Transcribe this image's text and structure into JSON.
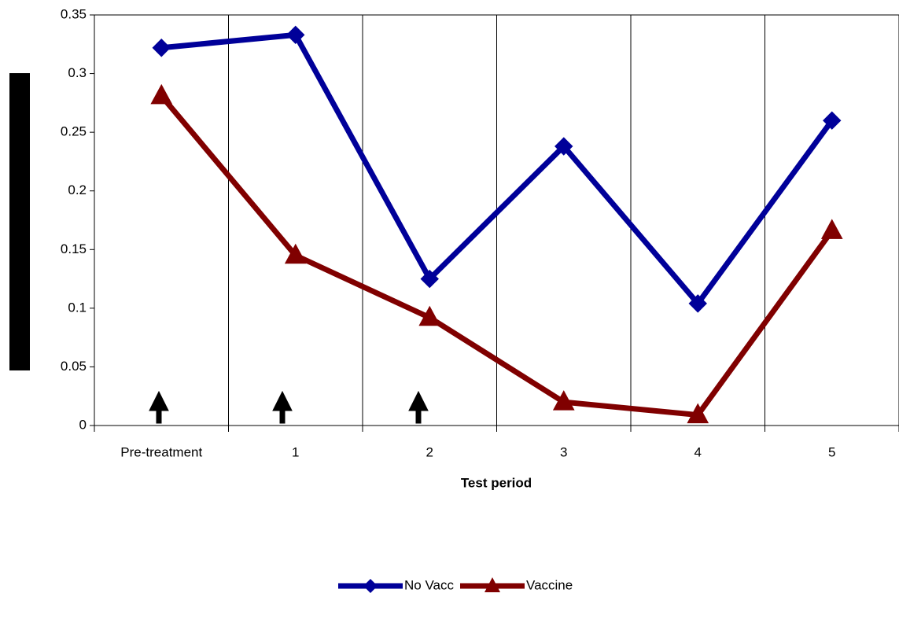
{
  "chart_data": {
    "type": "line",
    "x_label": "Test period",
    "categories": [
      "Pre-treatment",
      "1",
      "2",
      "3",
      "4",
      "5"
    ],
    "series": [
      {
        "name": "No Vacc",
        "color": "#000099",
        "marker": "diamond",
        "values": [
          0.322,
          0.333,
          0.125,
          0.238,
          0.104,
          0.26
        ]
      },
      {
        "name": "Vaccine",
        "color": "#800000",
        "marker": "triangle",
        "values": [
          0.281,
          0.145,
          0.092,
          0.02,
          0.009,
          0.166
        ]
      }
    ],
    "ylim": [
      0,
      0.35
    ],
    "yticks": [
      0,
      0.05,
      0.1,
      0.15,
      0.2,
      0.25,
      0.3,
      0.35
    ],
    "grid": "x",
    "legend": "bottom"
  }
}
